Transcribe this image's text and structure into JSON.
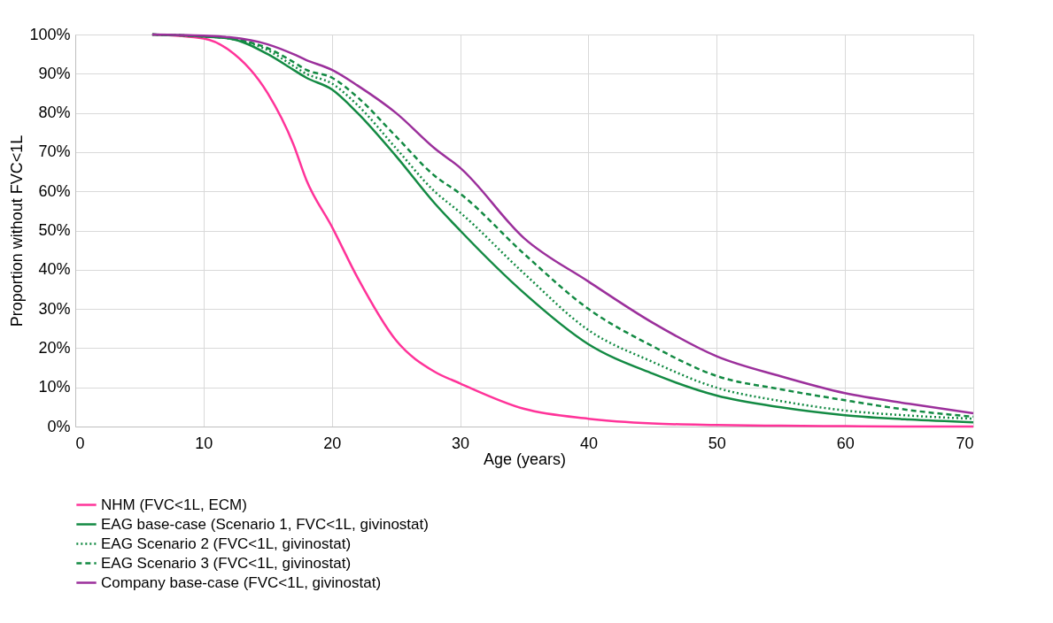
{
  "chart_data": {
    "type": "line",
    "xlabel": "Age (years)",
    "ylabel": "Proportion without FVC<1L",
    "x": [
      6,
      10,
      12,
      15,
      17,
      18,
      20,
      22,
      25,
      28,
      30,
      35,
      40,
      45,
      50,
      55,
      60,
      65,
      70
    ],
    "series": [
      {
        "name": "NHM (FVC<1L, ECM)",
        "color": "#ff3399",
        "line_style": "solid",
        "values": [
          100,
          99,
          96,
          85,
          72,
          63,
          51,
          38,
          22,
          14,
          11,
          4.5,
          2,
          0.8,
          0.4,
          0.2,
          0.1,
          0,
          0
        ]
      },
      {
        "name": "EAG base-case (Scenario 1, FVC<1L, givinostat)",
        "color": "#138a43",
        "line_style": "solid",
        "values": [
          100,
          99.5,
          99,
          95,
          91,
          89,
          86,
          80,
          69,
          57,
          50,
          34,
          21,
          13.5,
          7.9,
          4.9,
          2.9,
          1.8,
          1.1
        ]
      },
      {
        "name": "EAG Scenario 2 (FVC<1L, givinostat)",
        "color": "#138a43",
        "line_style": "dotted",
        "values": [
          100,
          99.5,
          99,
          96,
          92,
          90,
          87.5,
          82,
          71,
          60,
          54.6,
          39,
          24.6,
          16.5,
          9.9,
          6.5,
          4.1,
          2.8,
          2
        ]
      },
      {
        "name": "EAG Scenario 3 (FVC<1L, givinostat)",
        "color": "#138a43",
        "line_style": "dashed",
        "values": [
          100,
          99.5,
          99,
          96.5,
          93,
          91,
          89,
          84,
          74,
          64,
          59.4,
          44,
          30,
          20.5,
          12.9,
          9.5,
          6.7,
          4.2,
          2.5
        ]
      },
      {
        "name": "Company base-case (FVC<1L, givinostat)",
        "color": "#9b2f9b",
        "line_style": "solid",
        "values": [
          100,
          99.7,
          99.3,
          97.5,
          95,
          93.5,
          91,
          87,
          80,
          71,
          66,
          48,
          37,
          26.5,
          17.9,
          12.8,
          8.5,
          5.8,
          3.4
        ]
      }
    ],
    "xlim": [
      0,
      70
    ],
    "xticks": [
      0,
      10,
      20,
      30,
      40,
      50,
      60,
      70
    ],
    "ylim": [
      0,
      100
    ],
    "yticks": [
      {
        "value": 0,
        "label": "0%"
      },
      {
        "value": 10,
        "label": "10%"
      },
      {
        "value": 20,
        "label": "20%"
      },
      {
        "value": 30,
        "label": "30%"
      },
      {
        "value": 40,
        "label": "40%"
      },
      {
        "value": 50,
        "label": "50%"
      },
      {
        "value": 60,
        "label": "60%"
      },
      {
        "value": 70,
        "label": "70%"
      },
      {
        "value": 80,
        "label": "80%"
      },
      {
        "value": 90,
        "label": "90%"
      },
      {
        "value": 100,
        "label": "100%"
      }
    ],
    "grid": true,
    "legend": "bottom"
  }
}
